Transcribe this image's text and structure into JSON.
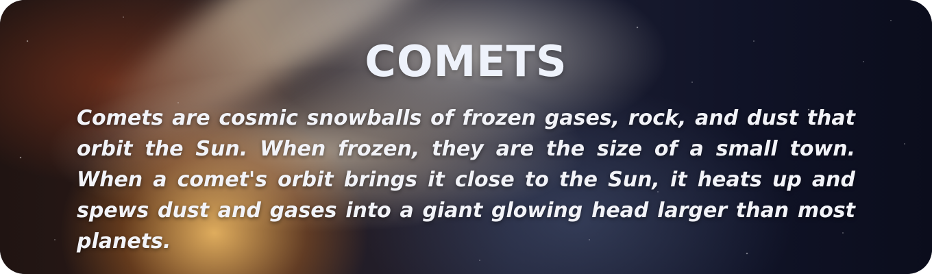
{
  "card": {
    "title": "COMETS",
    "description": "Comets are cosmic snowballs of frozen gases, rock, and dust that orbit the Sun. When frozen, they are the size of a small town. When a comet's orbit brings it close to the Sun, it heats up and spews dust and gases into a giant glowing head larger than most planets.",
    "background_image": "comet-in-space",
    "colors": {
      "title": "#eef2fb",
      "text": "#f2f3f8",
      "background_dark": "#0c0f1f"
    }
  }
}
